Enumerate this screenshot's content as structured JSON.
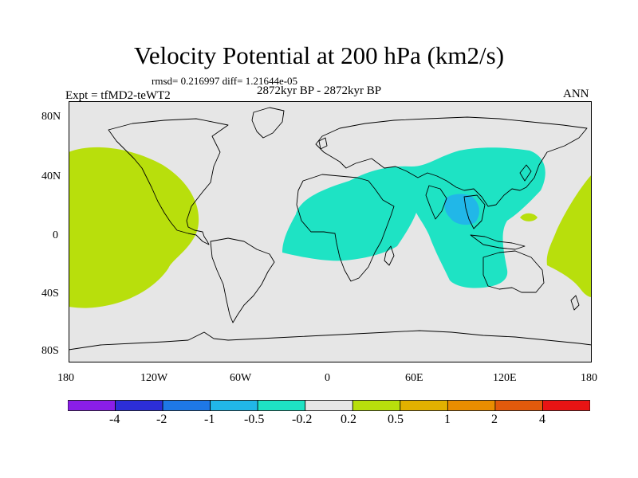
{
  "plot": {
    "title": "Velocity Potential at 200 hPa (km2/s)",
    "stats": "rmsd= 0.216997 diff= 1.21644e-05",
    "experiment": "Expt = tfMD2-teWT2",
    "period": "2872kyr BP - 2872kyr BP",
    "season": "ANN"
  },
  "axes": {
    "lat_labels": [
      "80N",
      "40N",
      "0",
      "40S",
      "80S"
    ],
    "lon_labels": [
      "180",
      "120W",
      "60W",
      "0",
      "60E",
      "120E",
      "180"
    ]
  },
  "colorbar": {
    "colors": [
      "#8a1ee8",
      "#2c2ed8",
      "#1e78e6",
      "#21b7e8",
      "#1ee3c4",
      "#e6e6e6",
      "#b8df0c",
      "#e2b100",
      "#e98d00",
      "#e25a0c",
      "#e81414"
    ],
    "labels": [
      "-4",
      "-2",
      "-1",
      "-0.5",
      "-0.2",
      "0.2",
      "0.5",
      "1",
      "2",
      "4"
    ]
  },
  "map": {
    "background_color": "#e6e6e6",
    "regions": [
      {
        "name": "positive-east-pacific",
        "color": "#b8df0c"
      },
      {
        "name": "positive-west-pacific",
        "color": "#b8df0c"
      },
      {
        "name": "negative-africa-asia",
        "color": "#1ee3c4"
      },
      {
        "name": "negative-maritime-continent",
        "color": "#21b7e8"
      }
    ]
  }
}
